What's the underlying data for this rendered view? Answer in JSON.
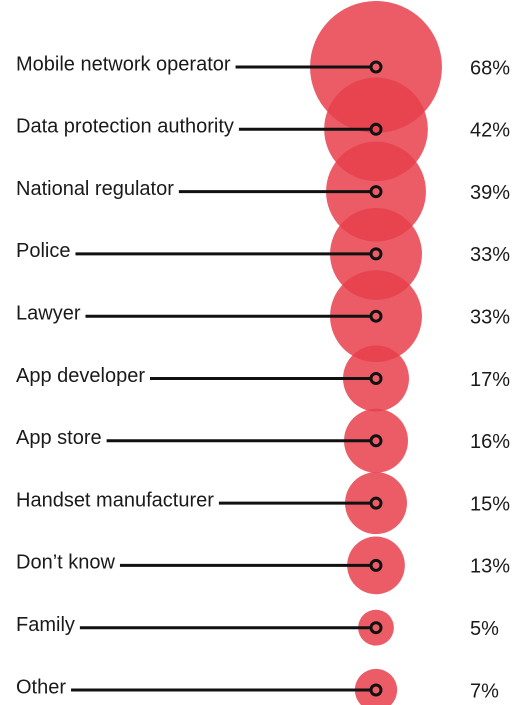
{
  "chart_data": {
    "type": "bubble",
    "categories": [
      "Mobile network operator",
      "Data protection authority",
      "National regulator",
      "Police",
      "Lawyer",
      "App developer",
      "App store",
      "Handset manufacturer",
      "Don’t know",
      "Family",
      "Other"
    ],
    "values": [
      68,
      42,
      39,
      33,
      33,
      17,
      16,
      15,
      13,
      5,
      7
    ],
    "value_labels": [
      "68%",
      "42%",
      "39%",
      "33%",
      "33%",
      "17%",
      "16%",
      "15%",
      "13%",
      "5%",
      "7%"
    ],
    "color": "#e8404b"
  }
}
